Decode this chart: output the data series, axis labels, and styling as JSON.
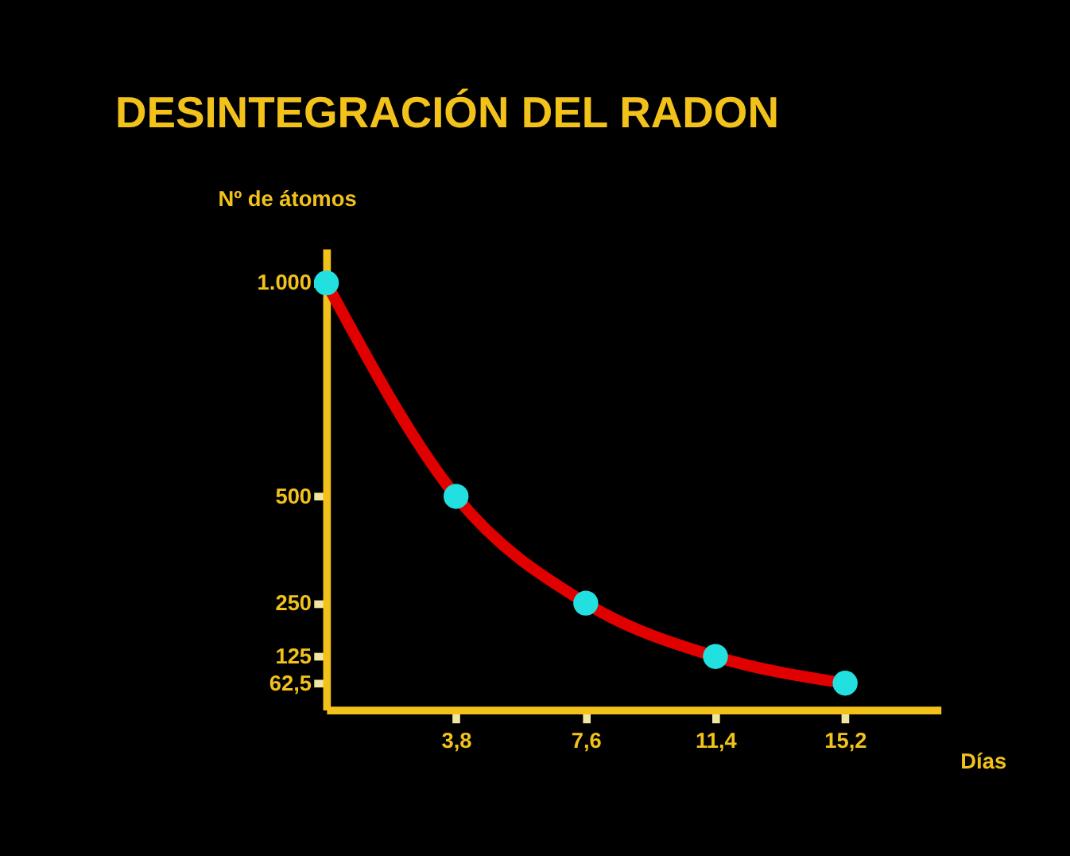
{
  "chart_data": {
    "type": "line",
    "title": "DESINTEGRACIÓN DEL RADON",
    "xlabel": "Días",
    "ylabel": "Nº de átomos",
    "x": [
      0,
      3.8,
      7.6,
      11.4,
      15.2
    ],
    "series": [
      {
        "type": "line",
        "color": "#e00000",
        "values": [
          1000,
          500,
          250,
          125,
          62.5
        ],
        "line_style": "solid"
      },
      {
        "type": "scatter",
        "color": "#22e0e0",
        "values": [
          1000,
          500,
          250,
          125,
          62.5
        ],
        "marker": "circle"
      }
    ],
    "xlim": [
      0,
      18
    ],
    "xticks": [
      {
        "value": 3.8,
        "label": "3,8"
      },
      {
        "value": 7.6,
        "label": "7,6"
      },
      {
        "value": 11.4,
        "label": "11,4"
      },
      {
        "value": 15.2,
        "label": "15,2"
      }
    ],
    "ylim": [
      0,
      1080
    ],
    "yticks": [
      {
        "value": 62.5,
        "label": "62,5"
      },
      125,
      250,
      500,
      {
        "value": 1000,
        "label": "1.000"
      }
    ],
    "grid": false
  }
}
